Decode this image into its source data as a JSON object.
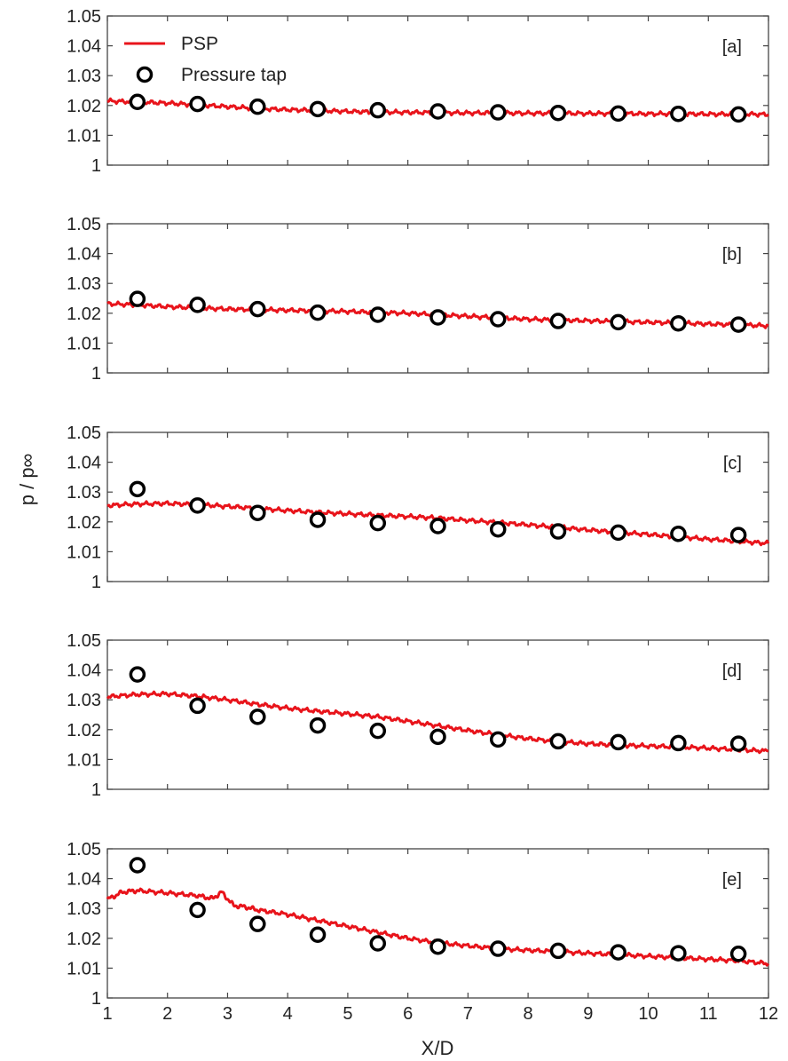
{
  "chart_data": {
    "type": "line",
    "ylabel": "p / p∞",
    "xlabel": "X/D",
    "xlim": [
      1,
      12
    ],
    "ylim": [
      1,
      1.05
    ],
    "x_ticks": [
      "1",
      "2",
      "3",
      "4",
      "5",
      "6",
      "7",
      "8",
      "9",
      "10",
      "11",
      "12"
    ],
    "y_ticks": [
      "1",
      "1.01",
      "1.02",
      "1.03",
      "1.04",
      "1.05"
    ],
    "legend": {
      "position": "top-left",
      "entries": [
        {
          "label": "PSP",
          "marker": "line"
        },
        {
          "label": "Pressure tap",
          "marker": "circle"
        }
      ]
    },
    "colors": {
      "psp": "#e8141b",
      "tap": "#000000",
      "axis": "#444444"
    },
    "tap_x": [
      1.5,
      2.5,
      3.5,
      4.5,
      5.5,
      6.5,
      7.5,
      8.5,
      9.5,
      10.5,
      11.5
    ],
    "panels": [
      {
        "label": "[a]",
        "psp_x": [
          1,
          1.5,
          2,
          2.5,
          3,
          3.5,
          4,
          4.5,
          5,
          5.5,
          6,
          6.5,
          7,
          7.5,
          8,
          8.5,
          9,
          9.5,
          10,
          10.5,
          11,
          11.5,
          12
        ],
        "psp_y": [
          1.0215,
          1.0212,
          1.0208,
          1.0202,
          1.0196,
          1.019,
          1.0186,
          1.0183,
          1.018,
          1.0178,
          1.0177,
          1.0176,
          1.0175,
          1.0175,
          1.0174,
          1.0174,
          1.0173,
          1.0173,
          1.0172,
          1.0172,
          1.0171,
          1.0171,
          1.017
        ],
        "tap_y": [
          1.0212,
          1.0205,
          1.0196,
          1.0188,
          1.0184,
          1.018,
          1.0177,
          1.0175,
          1.0173,
          1.0172,
          1.017
        ]
      },
      {
        "label": "[b]",
        "psp_x": [
          1,
          1.5,
          2,
          2.5,
          3,
          3.5,
          4,
          4.5,
          5,
          5.5,
          6,
          6.5,
          7,
          7.5,
          8,
          8.5,
          9,
          9.5,
          10,
          10.5,
          11,
          11.5,
          12
        ],
        "psp_y": [
          1.0232,
          1.0228,
          1.0222,
          1.0218,
          1.0214,
          1.0212,
          1.021,
          1.0208,
          1.0206,
          1.0203,
          1.02,
          1.0195,
          1.019,
          1.0185,
          1.018,
          1.0177,
          1.0175,
          1.0172,
          1.017,
          1.0167,
          1.0164,
          1.0161,
          1.0158
        ],
        "tap_y": [
          1.0248,
          1.0228,
          1.0214,
          1.0202,
          1.0195,
          1.0186,
          1.018,
          1.0174,
          1.017,
          1.0166,
          1.0162
        ]
      },
      {
        "label": "[c]",
        "psp_x": [
          1,
          1.5,
          2,
          2.5,
          3,
          3.5,
          4,
          4.5,
          5,
          5.5,
          6,
          6.5,
          7,
          7.5,
          8,
          8.5,
          9,
          9.5,
          10,
          10.5,
          11,
          11.5,
          12
        ],
        "psp_y": [
          1.0255,
          1.026,
          1.0262,
          1.0258,
          1.0252,
          1.0245,
          1.0238,
          1.0232,
          1.0227,
          1.0222,
          1.0218,
          1.0213,
          1.0205,
          1.0198,
          1.019,
          1.0182,
          1.0173,
          1.0165,
          1.0158,
          1.015,
          1.0142,
          1.0135,
          1.0128
        ],
        "tap_y": [
          1.031,
          1.0255,
          1.023,
          1.0207,
          1.0196,
          1.0186,
          1.0175,
          1.0168,
          1.0164,
          1.016,
          1.0156
        ]
      },
      {
        "label": "[d]",
        "psp_x": [
          1,
          1.5,
          2,
          2.5,
          3,
          3.5,
          4,
          4.5,
          5,
          5.5,
          6,
          6.5,
          7,
          7.5,
          8,
          8.5,
          9,
          9.5,
          10,
          10.5,
          11,
          11.5,
          12
        ],
        "psp_y": [
          1.031,
          1.0318,
          1.032,
          1.0312,
          1.03,
          1.0285,
          1.0272,
          1.0262,
          1.0253,
          1.0243,
          1.0228,
          1.0213,
          1.0197,
          1.0183,
          1.017,
          1.016,
          1.0153,
          1.0148,
          1.0145,
          1.0142,
          1.0138,
          1.0133,
          1.0128
        ],
        "tap_y": [
          1.0385,
          1.028,
          1.0243,
          1.0214,
          1.0196,
          1.0176,
          1.0167,
          1.0161,
          1.0158,
          1.0155,
          1.0153
        ]
      },
      {
        "label": "[e]",
        "psp_x": [
          1,
          1.25,
          1.5,
          2,
          2.5,
          2.75,
          2.9,
          3.1,
          3.3,
          3.5,
          4,
          4.5,
          5,
          5.5,
          6,
          6.5,
          7,
          7.5,
          8,
          8.5,
          9,
          9.5,
          10,
          10.5,
          11,
          11.5,
          12
        ],
        "psp_y": [
          1.033,
          1.0355,
          1.036,
          1.0352,
          1.0343,
          1.0333,
          1.0355,
          1.031,
          1.0305,
          1.0295,
          1.028,
          1.026,
          1.024,
          1.022,
          1.02,
          1.0185,
          1.0175,
          1.0165,
          1.016,
          1.0155,
          1.015,
          1.0145,
          1.014,
          1.0135,
          1.013,
          1.0125,
          1.0115
        ],
        "tap_y": [
          1.0445,
          1.0295,
          1.0248,
          1.0212,
          1.0183,
          1.0172,
          1.0165,
          1.0158,
          1.0153,
          1.015,
          1.0148
        ]
      }
    ]
  }
}
